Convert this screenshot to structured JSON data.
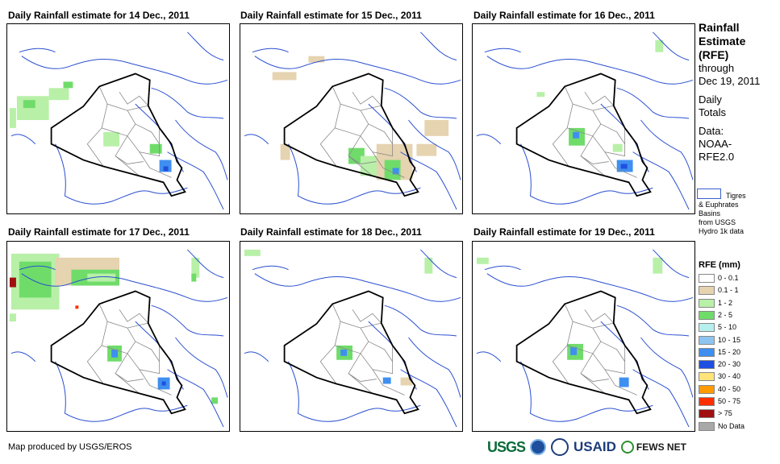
{
  "panels": [
    {
      "title": "Daily Rainfall estimate for 14 Dec., 2011"
    },
    {
      "title": "Daily Rainfall estimate for 15 Dec., 2011"
    },
    {
      "title": "Daily Rainfall estimate for 16 Dec., 2011"
    },
    {
      "title": "Daily Rainfall estimate for 17 Dec., 2011"
    },
    {
      "title": "Daily Rainfall estimate for 18 Dec., 2011"
    },
    {
      "title": "Daily Rainfall estimate for 19 Dec., 2011"
    }
  ],
  "sidebar": {
    "title_lines": [
      "Rainfall",
      "Estimate",
      "(RFE)"
    ],
    "through": "through",
    "date": "Dec 19, 2011",
    "daily": "Daily",
    "totals": "Totals",
    "data_label": "Data:",
    "data_source_1": "NOAA-",
    "data_source_2": "RFE2.0",
    "basin_note_1": "Tigres",
    "basin_note_2": "& Euphrates",
    "basin_note_3": "Basins",
    "basin_note_4": "from USGS",
    "basin_note_5": "Hydro 1k data"
  },
  "legend": {
    "title": "RFE (mm)",
    "items": [
      {
        "label": "0 - 0.1",
        "color": "#ffffff"
      },
      {
        "label": "0.1 - 1",
        "color": "#e6d3b0"
      },
      {
        "label": "1 - 2",
        "color": "#b8f0a8"
      },
      {
        "label": "2 - 5",
        "color": "#6fdc6a"
      },
      {
        "label": "5 - 10",
        "color": "#b7efef"
      },
      {
        "label": "10 - 15",
        "color": "#8ec4f0"
      },
      {
        "label": "15 - 20",
        "color": "#3f8ff0"
      },
      {
        "label": "20 - 30",
        "color": "#1f4fe0"
      },
      {
        "label": "30 - 40",
        "color": "#ffe47a"
      },
      {
        "label": "40 - 50",
        "color": "#ff9a00"
      },
      {
        "label": "50 - 75",
        "color": "#ff3000"
      },
      {
        "label": "> 75",
        "color": "#a01010"
      },
      {
        "label": "No Data",
        "color": "#a8a8a8"
      }
    ]
  },
  "footer": {
    "credit": "Map produced by USGS/EROS"
  },
  "logos": {
    "usgs": "USGS",
    "usaid": "USAID",
    "fews": "FEWS NET"
  },
  "colors": {
    "river": "#2a4fd0",
    "border": "#000000",
    "admin": "#888888"
  }
}
